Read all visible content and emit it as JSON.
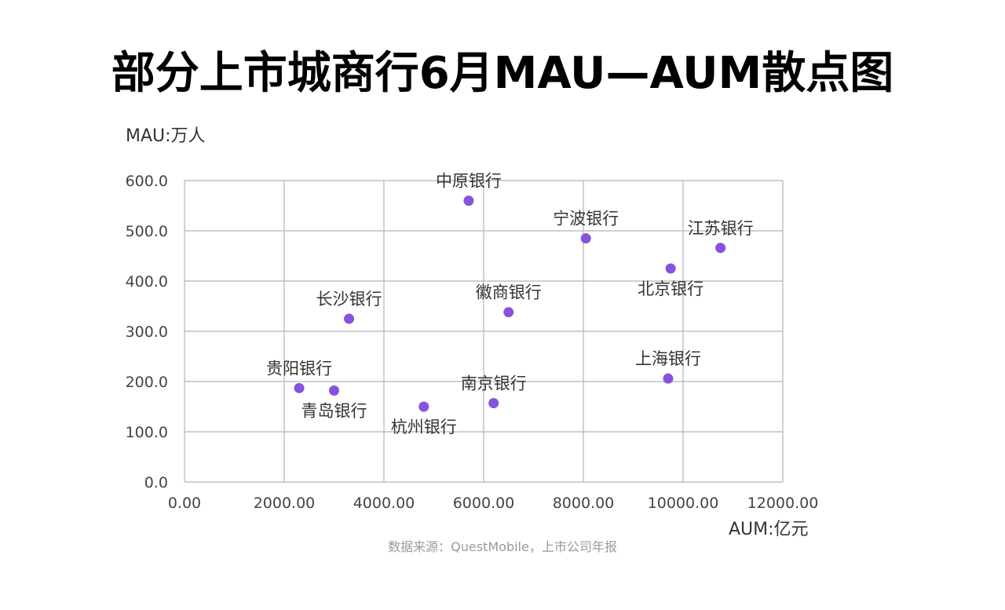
{
  "chart_data": {
    "type": "scatter",
    "title": "部分上市城商行6月MAU—AUM散点图",
    "ylabel": "MAU:万人",
    "xlabel": "AUM:亿元",
    "xlim": [
      0,
      12000
    ],
    "ylim": [
      0,
      600
    ],
    "x_ticks": [
      "0.00",
      "2000.00",
      "4000.00",
      "6000.00",
      "8000.00",
      "10000.00",
      "12000.00"
    ],
    "y_ticks": [
      "0.0",
      "100.0",
      "200.0",
      "300.0",
      "400.0",
      "500.0",
      "600.0"
    ],
    "grid": true,
    "point_color": "#8652de",
    "points": [
      {
        "label": "中原银行",
        "x": 5700,
        "y": 560,
        "label_pos": "above"
      },
      {
        "label": "宁波银行",
        "x": 8050,
        "y": 485,
        "label_pos": "above"
      },
      {
        "label": "江苏银行",
        "x": 10750,
        "y": 466,
        "label_pos": "above"
      },
      {
        "label": "北京银行",
        "x": 9750,
        "y": 425,
        "label_pos": "below"
      },
      {
        "label": "长沙银行",
        "x": 3300,
        "y": 325,
        "label_pos": "above"
      },
      {
        "label": "徽商银行",
        "x": 6500,
        "y": 338,
        "label_pos": "above"
      },
      {
        "label": "上海银行",
        "x": 9700,
        "y": 206,
        "label_pos": "above"
      },
      {
        "label": "贵阳银行",
        "x": 2300,
        "y": 187,
        "label_pos": "above"
      },
      {
        "label": "青岛银行",
        "x": 3000,
        "y": 182,
        "label_pos": "below"
      },
      {
        "label": "杭州银行",
        "x": 4800,
        "y": 150,
        "label_pos": "below"
      },
      {
        "label": "南京银行",
        "x": 6200,
        "y": 157,
        "label_pos": "above"
      }
    ]
  },
  "source": "数据来源：QuestMobile，上市公司年报"
}
